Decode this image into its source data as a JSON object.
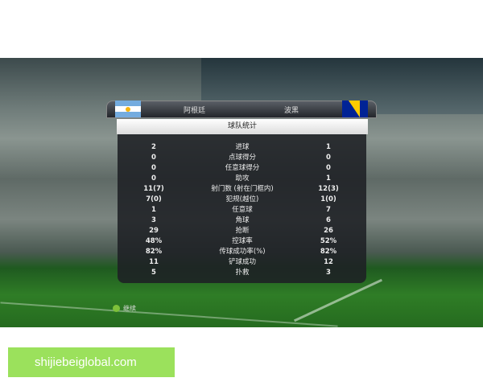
{
  "header": {
    "home_team": "阿根廷",
    "away_team": "波黑",
    "home_flag": "argentina-flag",
    "away_flag": "bosnia-flag"
  },
  "title": "球队统计",
  "stats": [
    {
      "home": "2",
      "label": "进球",
      "away": "1"
    },
    {
      "home": "0",
      "label": "点球得分",
      "away": "0"
    },
    {
      "home": "0",
      "label": "任意球得分",
      "away": "0"
    },
    {
      "home": "0",
      "label": "助攻",
      "away": "1"
    },
    {
      "home": "11(7)",
      "label": "射门数 (射在门框内)",
      "away": "12(3)"
    },
    {
      "home": "7(0)",
      "label": "犯规(越位)",
      "away": "1(0)"
    },
    {
      "home": "1",
      "label": "任意球",
      "away": "7"
    },
    {
      "home": "3",
      "label": "角球",
      "away": "6"
    },
    {
      "home": "29",
      "label": "抢断",
      "away": "26"
    },
    {
      "home": "48%",
      "label": "控球率",
      "away": "52%"
    },
    {
      "home": "82%",
      "label": "传球成功率(%)",
      "away": "82%"
    },
    {
      "home": "11",
      "label": "铲球成功",
      "away": "12"
    },
    {
      "home": "5",
      "label": "扑救",
      "away": "3"
    }
  ],
  "footer": {
    "continue_label": "继续",
    "button_icon": "a-button-icon"
  },
  "watermark": "shijiebeiglobal.com"
}
